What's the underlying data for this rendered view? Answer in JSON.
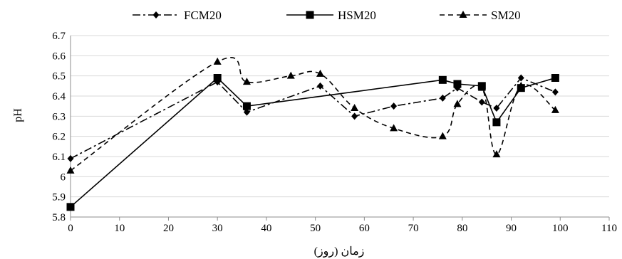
{
  "chart_data": {
    "type": "line",
    "title": "",
    "xlabel": "زمان (روز)",
    "ylabel": "pH",
    "xlim": [
      0,
      110
    ],
    "ylim": [
      5.8,
      6.7
    ],
    "x_ticks": [
      "0",
      "10",
      "20",
      "30",
      "40",
      "50",
      "60",
      "70",
      "80",
      "90",
      "100",
      "110"
    ],
    "y_ticks": [
      "5.8",
      "5.9",
      "6",
      "6.1",
      "6.2",
      "6.3",
      "6.4",
      "6.5",
      "6.6",
      "6.7"
    ],
    "grid": "horizontal",
    "legend_position": "top",
    "series": [
      {
        "name": "FCM20",
        "line_style": "dash-dot",
        "marker": "diamond",
        "smooth": false,
        "x": [
          0,
          30,
          36,
          51,
          58,
          66,
          76,
          79,
          84,
          87,
          92,
          99
        ],
        "y": [
          6.09,
          6.47,
          6.32,
          6.45,
          6.3,
          6.35,
          6.39,
          6.44,
          6.37,
          6.34,
          6.49,
          6.42
        ]
      },
      {
        "name": "HSM20",
        "line_style": "solid",
        "marker": "square",
        "smooth": false,
        "x": [
          0,
          30,
          36,
          76,
          79,
          84,
          87,
          92,
          99
        ],
        "y": [
          5.85,
          6.49,
          6.35,
          6.48,
          6.46,
          6.45,
          6.27,
          6.44,
          6.49
        ]
      },
      {
        "name": "SM20",
        "line_style": "dashed",
        "marker": "triangle",
        "smooth": true,
        "x": [
          0,
          30,
          36,
          45,
          51,
          58,
          66,
          76,
          79,
          84,
          87,
          92,
          99
        ],
        "y": [
          6.03,
          6.57,
          6.47,
          6.5,
          6.51,
          6.34,
          6.24,
          6.2,
          6.36,
          6.44,
          6.11,
          6.45,
          6.33
        ]
      }
    ]
  }
}
